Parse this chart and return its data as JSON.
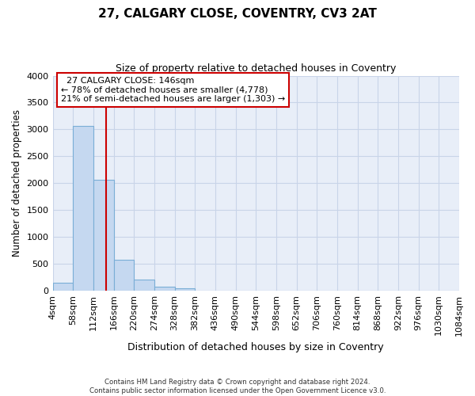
{
  "title": "27, CALGARY CLOSE, COVENTRY, CV3 2AT",
  "subtitle": "Size of property relative to detached houses in Coventry",
  "xlabel": "Distribution of detached houses by size in Coventry",
  "ylabel": "Number of detached properties",
  "bar_edges": [
    4,
    58,
    112,
    166,
    220,
    274,
    328,
    382,
    436,
    490,
    544,
    598,
    652,
    706,
    760,
    814,
    868,
    922,
    976,
    1030,
    1084
  ],
  "bar_heights": [
    150,
    3060,
    2060,
    565,
    210,
    75,
    40,
    0,
    0,
    0,
    0,
    0,
    0,
    0,
    0,
    0,
    0,
    0,
    0,
    0
  ],
  "bar_color": "#c5d8f0",
  "bar_edge_color": "#7aaed6",
  "ylim": [
    0,
    4000
  ],
  "vline_x": 146,
  "vline_color": "#cc0000",
  "annotation_title": "27 CALGARY CLOSE: 146sqm",
  "annotation_line1": "← 78% of detached houses are smaller (4,778)",
  "annotation_line2": "21% of semi-detached houses are larger (1,303) →",
  "annotation_box_color": "#cc0000",
  "tick_labels": [
    "4sqm",
    "58sqm",
    "112sqm",
    "166sqm",
    "220sqm",
    "274sqm",
    "328sqm",
    "382sqm",
    "436sqm",
    "490sqm",
    "544sqm",
    "598sqm",
    "652sqm",
    "706sqm",
    "760sqm",
    "814sqm",
    "868sqm",
    "922sqm",
    "976sqm",
    "1030sqm",
    "1084sqm"
  ],
  "footer_line1": "Contains HM Land Registry data © Crown copyright and database right 2024.",
  "footer_line2": "Contains public sector information licensed under the Open Government Licence v3.0.",
  "grid_color": "#c8d4e8",
  "bg_color": "#e8eef8",
  "plot_bg_color": "#e8eef8",
  "yticks": [
    0,
    500,
    1000,
    1500,
    2000,
    2500,
    3000,
    3500,
    4000
  ]
}
